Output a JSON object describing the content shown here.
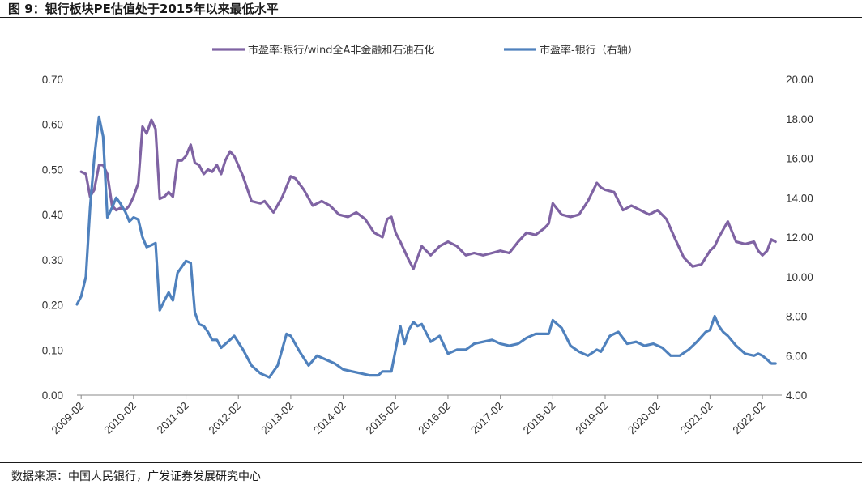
{
  "figure": {
    "title": "图 9：银行板块PE估值处于2015年以来最低水平",
    "source": "数据来源：中国人民银行，广发证券发展研究中心"
  },
  "colors": {
    "purple": "#7f63a3",
    "blue": "#4f81bd",
    "axis": "#888888"
  },
  "chart_data": {
    "type": "line",
    "title": "",
    "xlabel": "",
    "ylabel": "",
    "x_ticks": [
      "2009-02",
      "2010-02",
      "2011-02",
      "2012-02",
      "2013-02",
      "2014-02",
      "2015-02",
      "2016-02",
      "2017-02",
      "2018-02",
      "2019-02",
      "2020-02",
      "2021-02",
      "2022-02"
    ],
    "y_left": {
      "min": 0,
      "max": 0.7,
      "step": 0.1,
      "tick_labels": [
        "0.00",
        "0.10",
        "0.20",
        "0.30",
        "0.40",
        "0.50",
        "0.60",
        "0.70"
      ]
    },
    "y_right": {
      "min": 4,
      "max": 20,
      "step": 2,
      "tick_labels": [
        "4.00",
        "6.00",
        "8.00",
        "10.00",
        "12.00",
        "14.00",
        "16.00",
        "18.00",
        "20.00"
      ]
    },
    "legend_position": "top-center",
    "grid": false,
    "series": [
      {
        "name": "市盈率:银行/wind全A非金融和石油石化",
        "axis": "left",
        "color": "#7f63a3",
        "x": [
          2009.08,
          2009.17,
          2009.25,
          2009.33,
          2009.42,
          2009.5,
          2009.58,
          2009.67,
          2009.75,
          2009.83,
          2009.92,
          2010.0,
          2010.08,
          2010.17,
          2010.25,
          2010.33,
          2010.42,
          2010.5,
          2010.58,
          2010.67,
          2010.75,
          2010.83,
          2010.92,
          2011.0,
          2011.08,
          2011.17,
          2011.25,
          2011.33,
          2011.42,
          2011.5,
          2011.58,
          2011.67,
          2011.75,
          2011.83,
          2011.92,
          2012.0,
          2012.17,
          2012.33,
          2012.5,
          2012.58,
          2012.75,
          2012.92,
          2013.08,
          2013.17,
          2013.33,
          2013.5,
          2013.67,
          2013.83,
          2014.0,
          2014.17,
          2014.33,
          2014.5,
          2014.67,
          2014.83,
          2014.92,
          2015.0,
          2015.08,
          2015.17,
          2015.25,
          2015.33,
          2015.42,
          2015.58,
          2015.75,
          2015.92,
          2016.08,
          2016.25,
          2016.42,
          2016.58,
          2016.75,
          2016.92,
          2017.08,
          2017.25,
          2017.42,
          2017.58,
          2017.75,
          2017.92,
          2018.0,
          2018.08,
          2018.25,
          2018.42,
          2018.58,
          2018.75,
          2018.92,
          2019.0,
          2019.08,
          2019.25,
          2019.42,
          2019.58,
          2019.75,
          2019.92,
          2020.08,
          2020.25,
          2020.42,
          2020.58,
          2020.75,
          2020.92,
          2021.08,
          2021.17,
          2021.25,
          2021.42,
          2021.58,
          2021.75,
          2021.92,
          2022.0,
          2022.08,
          2022.17,
          2022.25,
          2022.33
        ],
        "values": [
          0.495,
          0.49,
          0.44,
          0.455,
          0.51,
          0.51,
          0.49,
          0.42,
          0.41,
          0.415,
          0.41,
          0.42,
          0.44,
          0.47,
          0.595,
          0.58,
          0.61,
          0.59,
          0.435,
          0.44,
          0.45,
          0.44,
          0.52,
          0.52,
          0.53,
          0.555,
          0.515,
          0.51,
          0.49,
          0.5,
          0.495,
          0.51,
          0.49,
          0.52,
          0.54,
          0.53,
          0.485,
          0.43,
          0.425,
          0.43,
          0.405,
          0.44,
          0.485,
          0.48,
          0.455,
          0.42,
          0.43,
          0.42,
          0.4,
          0.395,
          0.405,
          0.39,
          0.36,
          0.35,
          0.39,
          0.395,
          0.36,
          0.34,
          0.32,
          0.3,
          0.28,
          0.33,
          0.31,
          0.33,
          0.34,
          0.33,
          0.31,
          0.315,
          0.31,
          0.315,
          0.32,
          0.315,
          0.34,
          0.36,
          0.355,
          0.37,
          0.38,
          0.425,
          0.4,
          0.395,
          0.4,
          0.43,
          0.47,
          0.46,
          0.455,
          0.45,
          0.41,
          0.42,
          0.41,
          0.4,
          0.41,
          0.39,
          0.345,
          0.305,
          0.285,
          0.29,
          0.32,
          0.33,
          0.35,
          0.385,
          0.34,
          0.335,
          0.34,
          0.32,
          0.31,
          0.32,
          0.345,
          0.34
        ]
      },
      {
        "name": "市盈率-银行（右轴）",
        "axis": "right",
        "color": "#4f81bd",
        "x": [
          2009.0,
          2009.08,
          2009.17,
          2009.25,
          2009.33,
          2009.42,
          2009.5,
          2009.58,
          2009.67,
          2009.75,
          2009.83,
          2009.92,
          2010.0,
          2010.08,
          2010.17,
          2010.25,
          2010.33,
          2010.42,
          2010.5,
          2010.58,
          2010.67,
          2010.75,
          2010.83,
          2010.92,
          2011.0,
          2011.08,
          2011.17,
          2011.25,
          2011.33,
          2011.42,
          2011.5,
          2011.58,
          2011.67,
          2011.75,
          2011.92,
          2012.0,
          2012.17,
          2012.33,
          2012.5,
          2012.67,
          2012.83,
          2013.0,
          2013.08,
          2013.25,
          2013.42,
          2013.58,
          2013.75,
          2013.92,
          2014.08,
          2014.25,
          2014.42,
          2014.58,
          2014.75,
          2014.83,
          2014.92,
          2015.0,
          2015.08,
          2015.17,
          2015.25,
          2015.33,
          2015.42,
          2015.5,
          2015.58,
          2015.75,
          2015.92,
          2016.08,
          2016.25,
          2016.42,
          2016.58,
          2016.75,
          2016.92,
          2017.08,
          2017.25,
          2017.42,
          2017.58,
          2017.75,
          2017.92,
          2018.0,
          2018.08,
          2018.25,
          2018.42,
          2018.58,
          2018.75,
          2018.92,
          2019.0,
          2019.17,
          2019.33,
          2019.5,
          2019.67,
          2019.83,
          2020.0,
          2020.17,
          2020.33,
          2020.5,
          2020.67,
          2020.83,
          2021.0,
          2021.08,
          2021.17,
          2021.25,
          2021.33,
          2021.42,
          2021.58,
          2021.75,
          2021.92,
          2022.0,
          2022.08,
          2022.17,
          2022.25,
          2022.33
        ],
        "values": [
          8.6,
          9.0,
          10.0,
          13.5,
          16.0,
          18.1,
          17.1,
          13.0,
          13.5,
          14.0,
          13.7,
          13.3,
          12.8,
          13.0,
          12.9,
          12.0,
          11.5,
          11.6,
          11.7,
          8.3,
          8.8,
          9.2,
          8.8,
          10.2,
          10.5,
          10.8,
          10.7,
          8.2,
          7.6,
          7.5,
          7.2,
          6.8,
          6.8,
          6.4,
          6.8,
          7.0,
          6.3,
          5.5,
          5.1,
          4.9,
          5.5,
          7.1,
          7.0,
          6.2,
          5.5,
          6.0,
          5.8,
          5.6,
          5.3,
          5.2,
          5.1,
          5.0,
          5.0,
          5.2,
          5.2,
          5.2,
          6.3,
          7.5,
          6.6,
          7.3,
          7.7,
          7.5,
          7.6,
          6.7,
          7.0,
          6.1,
          6.3,
          6.3,
          6.6,
          6.7,
          6.8,
          6.6,
          6.5,
          6.6,
          6.9,
          7.1,
          7.1,
          7.1,
          7.8,
          7.4,
          6.5,
          6.2,
          6.0,
          6.3,
          6.2,
          7.0,
          7.2,
          6.6,
          6.7,
          6.5,
          6.6,
          6.4,
          6.0,
          6.0,
          6.3,
          6.7,
          7.2,
          7.3,
          8.0,
          7.5,
          7.2,
          7.0,
          6.5,
          6.1,
          6.0,
          6.1,
          6.0,
          5.8,
          5.6,
          5.6
        ]
      }
    ]
  }
}
